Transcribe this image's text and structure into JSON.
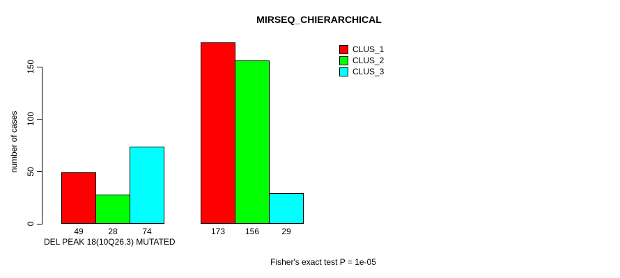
{
  "title": "MIRSEQ_CHIERARCHICAL",
  "y_axis_label": "number of cases",
  "footnote": "Fisher's exact test P = 1e-05",
  "chart_data": {
    "type": "bar",
    "title": "MIRSEQ_CHIERARCHICAL",
    "ylabel": "number of cases",
    "xlabel": "",
    "ylim": [
      0,
      150
    ],
    "yticks": [
      0,
      50,
      100,
      150
    ],
    "grid": false,
    "legend_position": "top-right-inside",
    "series": [
      {
        "name": "CLUS_1",
        "color": "#FF0000"
      },
      {
        "name": "CLUS_2",
        "color": "#00FF00"
      },
      {
        "name": "CLUS_3",
        "color": "#00FFFF"
      }
    ],
    "groups": [
      {
        "label": "DEL PEAK 18(10Q26.3) MUTATED",
        "values": [
          49,
          28,
          74
        ]
      },
      {
        "label": "",
        "values": [
          173,
          156,
          29
        ]
      }
    ],
    "bar_value_labels": [
      [
        "49",
        "28",
        "74"
      ],
      [
        "173",
        "156",
        "29"
      ]
    ],
    "annotation": "Fisher's exact test P = 1e-05"
  }
}
